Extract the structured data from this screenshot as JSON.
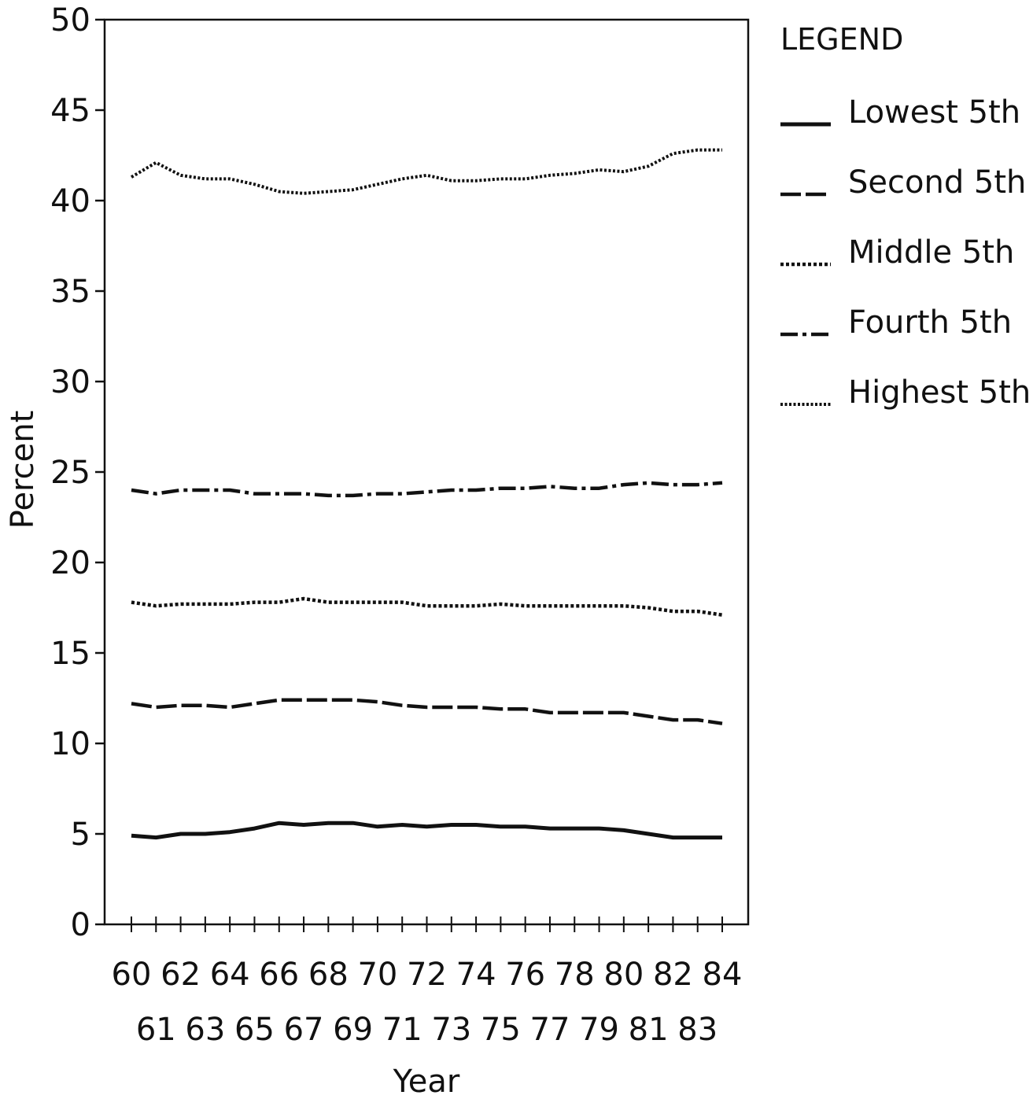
{
  "chart_data": {
    "type": "line",
    "xlabel": "Year",
    "ylabel": "Percent",
    "ylim": [
      0,
      50
    ],
    "yticks": [
      0,
      5,
      10,
      15,
      20,
      25,
      30,
      35,
      40,
      45,
      50
    ],
    "x": [
      60,
      61,
      62,
      63,
      64,
      65,
      66,
      67,
      68,
      69,
      70,
      71,
      72,
      73,
      74,
      75,
      76,
      77,
      78,
      79,
      80,
      81,
      82,
      83,
      84
    ],
    "xticks_row1": [
      "60",
      "62",
      "64",
      "66",
      "68",
      "70",
      "72",
      "74",
      "76",
      "78",
      "80",
      "82",
      "84"
    ],
    "xticks_row2": [
      "61",
      "63",
      "65",
      "67",
      "69",
      "71",
      "73",
      "75",
      "77",
      "79",
      "81",
      "83"
    ],
    "grid": false,
    "legend_title": "LEGEND",
    "legend_position": "right",
    "color": "#111111",
    "series": [
      {
        "name": "Lowest 5th",
        "dash": "solid",
        "values": [
          4.9,
          4.8,
          5.0,
          5.0,
          5.1,
          5.3,
          5.6,
          5.5,
          5.6,
          5.6,
          5.4,
          5.5,
          5.4,
          5.5,
          5.5,
          5.4,
          5.4,
          5.3,
          5.3,
          5.3,
          5.2,
          5.0,
          4.8,
          4.8,
          4.8
        ]
      },
      {
        "name": "Second 5th",
        "dash": "dash",
        "values": [
          12.2,
          12.0,
          12.1,
          12.1,
          12.0,
          12.2,
          12.4,
          12.4,
          12.4,
          12.4,
          12.3,
          12.1,
          12.0,
          12.0,
          12.0,
          11.9,
          11.9,
          11.7,
          11.7,
          11.7,
          11.7,
          11.5,
          11.3,
          11.3,
          11.1
        ]
      },
      {
        "name": "Middle 5th",
        "dash": "dotted",
        "values": [
          17.8,
          17.6,
          17.7,
          17.7,
          17.7,
          17.8,
          17.8,
          18.0,
          17.8,
          17.8,
          17.8,
          17.8,
          17.6,
          17.6,
          17.6,
          17.7,
          17.6,
          17.6,
          17.6,
          17.6,
          17.6,
          17.5,
          17.3,
          17.3,
          17.1
        ]
      },
      {
        "name": "Fourth 5th",
        "dash": "dashdot",
        "values": [
          24.0,
          23.8,
          24.0,
          24.0,
          24.0,
          23.8,
          23.8,
          23.8,
          23.7,
          23.7,
          23.8,
          23.8,
          23.9,
          24.0,
          24.0,
          24.1,
          24.1,
          24.2,
          24.1,
          24.1,
          24.3,
          24.4,
          24.3,
          24.3,
          24.4
        ]
      },
      {
        "name": "Highest 5th",
        "dash": "fine-dotted",
        "values": [
          41.3,
          42.1,
          41.4,
          41.2,
          41.2,
          40.9,
          40.5,
          40.4,
          40.5,
          40.6,
          40.9,
          41.2,
          41.4,
          41.1,
          41.1,
          41.2,
          41.2,
          41.4,
          41.5,
          41.7,
          41.6,
          41.9,
          42.6,
          42.8,
          42.8
        ]
      }
    ]
  }
}
